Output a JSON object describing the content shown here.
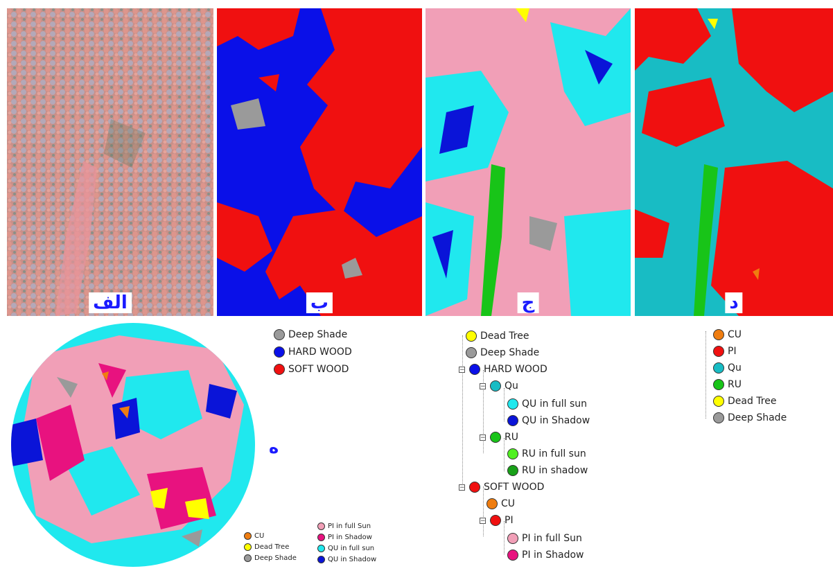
{
  "panels": [
    {
      "label": "الف"
    },
    {
      "label": "ب"
    },
    {
      "label": "ج"
    },
    {
      "label": "د"
    }
  ],
  "circle_label": "ه",
  "colors": {
    "pi_full_sun": "#f19fb7",
    "pi_shadow": "#e8127f",
    "qu_full_sun": "#20e8ee",
    "qu_shadow": "#0a14d8",
    "hard_wood": "#0a10e8",
    "soft_wood": "#f01010",
    "deep_shade": "#9a9a9a",
    "dead_tree": "#ffff00",
    "cu": "#ef7d10",
    "pi": "#f01010",
    "qu": "#18bcc4",
    "ru": "#18c418",
    "ru_full_sun": "#50f020",
    "ru_shadow": "#18a018",
    "aerial_pink": "#d98f8a",
    "aerial_gray": "#a7a0b0"
  },
  "legend_b": [
    "Deep Shade",
    "HARD WOOD",
    "SOFT WOOD"
  ],
  "legend_c": {
    "dead_tree": "Dead Tree",
    "deep_shade": "Deep Shade",
    "hard_wood": "HARD WOOD",
    "qu": "Qu",
    "qu_full_sun": "QU in full sun",
    "qu_shadow": "QU in Shadow",
    "ru": "RU",
    "ru_full_sun": "RU in full sun",
    "ru_shadow": "RU in shadow",
    "soft_wood": "SOFT WOOD",
    "cu": "CU",
    "pi": "PI",
    "pi_full_sun": "PI in full Sun",
    "pi_shadow": "PI in Shadow"
  },
  "legend_d": [
    "CU",
    "PI",
    "Qu",
    "RU",
    "Dead Tree",
    "Deep Shade"
  ],
  "legend_circle_left": [
    "CU",
    "Dead Tree",
    "Deep Shade"
  ],
  "legend_circle_right": [
    "PI in full Sun",
    "PI in Shadow",
    "QU in full sun",
    "QU in Shadow"
  ]
}
